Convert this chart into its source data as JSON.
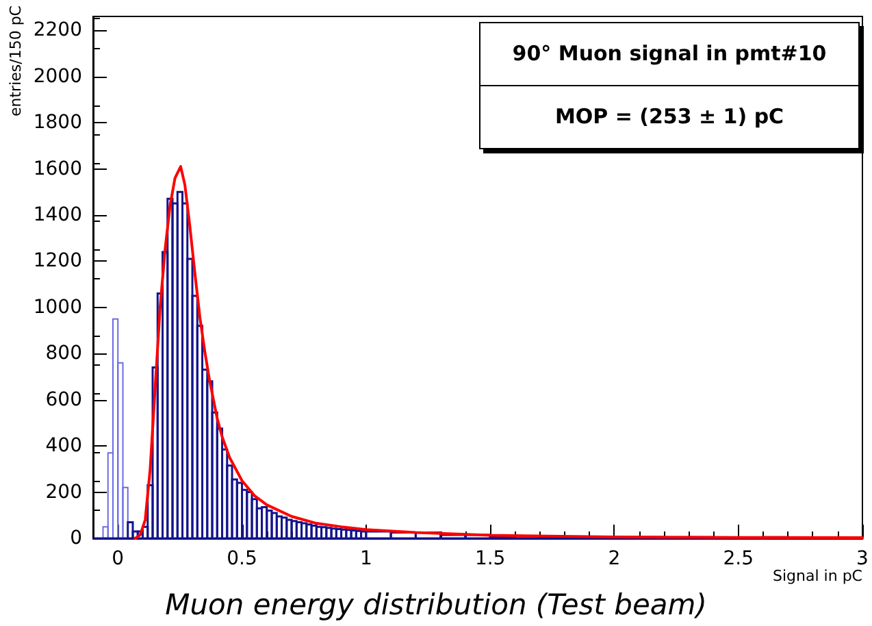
{
  "chart_data": {
    "type": "histogram",
    "title": "Muon energy distribution (Test beam)",
    "xlabel": "Signal in pC",
    "ylabel": "entries/150 pC",
    "annotations": [
      "90° Muon signal in pmt#10",
      "MOP = (253 ± 1) pC"
    ],
    "bins": [
      -0.1,
      -0.08,
      -0.06,
      -0.04,
      -0.02,
      0,
      0.02,
      0.04,
      0.06,
      0.08,
      0.1,
      0.12,
      0.14,
      0.16,
      0.18,
      0.2,
      0.22,
      0.24,
      0.26,
      0.28,
      0.3,
      0.32,
      0.34,
      0.36,
      0.38,
      0.4,
      0.42,
      0.44,
      0.46,
      0.48,
      0.5,
      0.52,
      0.54,
      0.56,
      0.58,
      0.6,
      0.62,
      0.64,
      0.66,
      0.68,
      0.7,
      0.72,
      0.74,
      0.76,
      0.78,
      0.8,
      0.82,
      0.84,
      0.86,
      0.88,
      0.9,
      0.92,
      0.94,
      0.96,
      0.98,
      1.0,
      1.1,
      1.2,
      1.3,
      1.4,
      1.5,
      1.6,
      1.7,
      1.8,
      1.9,
      2.0,
      2.1,
      2.2,
      2.3,
      2.4,
      2.5,
      2.6,
      2.7,
      2.8,
      2.9,
      3.0
    ],
    "series": [
      {
        "type": "histogram",
        "color": "#6b6be6",
        "values": [
          0,
          0,
          50,
          370,
          950,
          760,
          220,
          0,
          0,
          0,
          0,
          0,
          0,
          0,
          0,
          0,
          0,
          0,
          0,
          0,
          0,
          0,
          0,
          0,
          0,
          0,
          0,
          0,
          0,
          0,
          0,
          0,
          0,
          0,
          0,
          0,
          0,
          0,
          0,
          0,
          0,
          0,
          0,
          0,
          0,
          0,
          0,
          0,
          0,
          0,
          0,
          0,
          0,
          0,
          0,
          0,
          0,
          0,
          0,
          0,
          0,
          0,
          0,
          0,
          0,
          0,
          0,
          0,
          0,
          0,
          0,
          0,
          0,
          0,
          0
        ]
      },
      {
        "type": "histogram",
        "color": "#14148c",
        "values": [
          0,
          0,
          0,
          0,
          0,
          0,
          0,
          70,
          30,
          30,
          50,
          230,
          740,
          1060,
          1240,
          1470,
          1450,
          1500,
          1450,
          1210,
          1050,
          920,
          730,
          680,
          545,
          475,
          385,
          315,
          255,
          240,
          210,
          200,
          170,
          130,
          135,
          120,
          110,
          95,
          90,
          80,
          75,
          70,
          65,
          60,
          55,
          50,
          48,
          45,
          42,
          40,
          38,
          36,
          34,
          32,
          30,
          30,
          25,
          25,
          15,
          15,
          8,
          10,
          8,
          5,
          3,
          3,
          5,
          3,
          5,
          4,
          3,
          5,
          3,
          3,
          3
        ]
      },
      {
        "type": "line",
        "color": "#ff0000",
        "x": [
          0.07,
          0.09,
          0.11,
          0.13,
          0.15,
          0.17,
          0.19,
          0.21,
          0.23,
          0.253,
          0.27,
          0.29,
          0.31,
          0.33,
          0.35,
          0.37,
          0.4,
          0.42,
          0.45,
          0.5,
          0.55,
          0.6,
          0.7,
          0.8,
          0.9,
          1.0,
          1.2,
          1.5,
          2.0,
          2.5,
          3.0
        ],
        "values": [
          0,
          15,
          80,
          300,
          650,
          1000,
          1250,
          1440,
          1560,
          1610,
          1530,
          1350,
          1150,
          960,
          810,
          680,
          520,
          440,
          350,
          250,
          185,
          145,
          95,
          65,
          50,
          38,
          25,
          13,
          6,
          4,
          3
        ]
      }
    ],
    "xlim": [
      -0.1,
      3
    ],
    "xticks": [
      0,
      0.5,
      1,
      1.5,
      2,
      2.5,
      3
    ],
    "ylim": [
      0,
      2260
    ],
    "yticks": [
      0,
      200,
      400,
      600,
      800,
      1000,
      1200,
      1400,
      1600,
      1800,
      2000,
      2200
    ],
    "grid": false,
    "marker": "none",
    "line_style": "solid"
  }
}
